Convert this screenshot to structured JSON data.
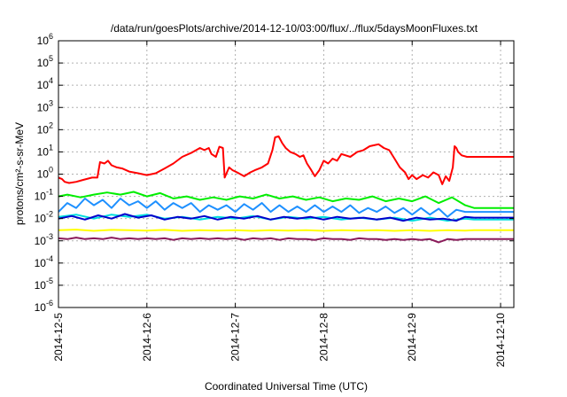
{
  "chart_data": {
    "type": "line",
    "title": "/data/run/goesPlots/archive/2014-12-10/03:00/flux/../flux/5daysMoonFluxes.txt",
    "xlabel": "Coordinated Universal Time (UTC)",
    "ylabel": "protons/cm²-s-sr-MeV",
    "yscale": "log",
    "ylim_exp": [
      -6,
      6
    ],
    "y_tick_exponents": [
      -6,
      -5,
      -4,
      -3,
      -2,
      -1,
      0,
      1,
      2,
      3,
      4,
      5,
      6
    ],
    "y_tick_base": "10",
    "x_ticks": [
      "2014-12-5",
      "2014-12-6",
      "2014-12-7",
      "2014-12-8",
      "2014-12-9",
      "2014-12-10"
    ],
    "xlim_days": [
      0,
      5.15
    ],
    "data_end_day": 4.7,
    "grid": true,
    "legend": "none",
    "series": [
      {
        "color": "#ff0000",
        "points": [
          [
            0,
            0.7
          ],
          [
            0.04,
            0.6
          ],
          [
            0.07,
            0.45
          ],
          [
            0.12,
            0.4
          ],
          [
            0.2,
            0.45
          ],
          [
            0.28,
            0.55
          ],
          [
            0.38,
            0.7
          ],
          [
            0.44,
            0.7
          ],
          [
            0.47,
            3.5
          ],
          [
            0.52,
            3
          ],
          [
            0.56,
            4
          ],
          [
            0.6,
            2.5
          ],
          [
            0.66,
            2
          ],
          [
            0.72,
            1.8
          ],
          [
            0.8,
            1.3
          ],
          [
            0.9,
            1.1
          ],
          [
            1.0,
            0.9
          ],
          [
            1.1,
            1.1
          ],
          [
            1.2,
            1.8
          ],
          [
            1.3,
            3
          ],
          [
            1.4,
            6
          ],
          [
            1.5,
            9
          ],
          [
            1.6,
            15
          ],
          [
            1.65,
            12
          ],
          [
            1.7,
            15
          ],
          [
            1.73,
            8
          ],
          [
            1.78,
            6
          ],
          [
            1.82,
            17
          ],
          [
            1.86,
            15
          ],
          [
            1.88,
            0.7
          ],
          [
            1.93,
            2
          ],
          [
            1.97,
            1.5
          ],
          [
            2.02,
            1.2
          ],
          [
            2.1,
            0.8
          ],
          [
            2.17,
            1.2
          ],
          [
            2.22,
            1.5
          ],
          [
            2.3,
            2
          ],
          [
            2.37,
            3
          ],
          [
            2.42,
            12
          ],
          [
            2.45,
            45
          ],
          [
            2.49,
            50
          ],
          [
            2.53,
            25
          ],
          [
            2.57,
            15
          ],
          [
            2.62,
            10
          ],
          [
            2.68,
            8
          ],
          [
            2.73,
            6
          ],
          [
            2.77,
            7
          ],
          [
            2.81,
            3
          ],
          [
            2.86,
            1.5
          ],
          [
            2.9,
            0.8
          ],
          [
            2.95,
            1.5
          ],
          [
            3.0,
            4
          ],
          [
            3.05,
            3
          ],
          [
            3.1,
            5
          ],
          [
            3.15,
            4
          ],
          [
            3.2,
            8
          ],
          [
            3.3,
            6
          ],
          [
            3.38,
            10
          ],
          [
            3.45,
            12
          ],
          [
            3.52,
            18
          ],
          [
            3.57,
            20
          ],
          [
            3.62,
            22
          ],
          [
            3.68,
            15
          ],
          [
            3.74,
            12
          ],
          [
            3.8,
            5
          ],
          [
            3.86,
            2
          ],
          [
            3.92,
            1.2
          ],
          [
            3.96,
            0.6
          ],
          [
            4.0,
            0.9
          ],
          [
            4.05,
            0.6
          ],
          [
            4.12,
            0.9
          ],
          [
            4.18,
            0.7
          ],
          [
            4.24,
            1.2
          ],
          [
            4.3,
            0.9
          ],
          [
            4.34,
            0.35
          ],
          [
            4.38,
            0.8
          ],
          [
            4.42,
            0.5
          ],
          [
            4.46,
            2
          ],
          [
            4.48,
            18
          ],
          [
            4.5,
            15
          ],
          [
            4.52,
            10
          ],
          [
            4.56,
            7
          ],
          [
            4.62,
            6
          ],
          [
            4.7,
            6
          ],
          [
            5.15,
            6
          ]
        ]
      },
      {
        "color": "#00ee00",
        "points": [
          [
            0,
            0.1
          ],
          [
            0.1,
            0.12
          ],
          [
            0.25,
            0.09
          ],
          [
            0.4,
            0.12
          ],
          [
            0.55,
            0.15
          ],
          [
            0.7,
            0.12
          ],
          [
            0.85,
            0.16
          ],
          [
            1.0,
            0.1
          ],
          [
            1.15,
            0.14
          ],
          [
            1.3,
            0.08
          ],
          [
            1.45,
            0.1
          ],
          [
            1.6,
            0.07
          ],
          [
            1.75,
            0.09
          ],
          [
            1.9,
            0.07
          ],
          [
            2.05,
            0.1
          ],
          [
            2.2,
            0.08
          ],
          [
            2.35,
            0.12
          ],
          [
            2.5,
            0.08
          ],
          [
            2.65,
            0.1
          ],
          [
            2.8,
            0.07
          ],
          [
            2.95,
            0.09
          ],
          [
            3.1,
            0.06
          ],
          [
            3.25,
            0.08
          ],
          [
            3.4,
            0.07
          ],
          [
            3.55,
            0.1
          ],
          [
            3.7,
            0.06
          ],
          [
            3.85,
            0.08
          ],
          [
            4.0,
            0.06
          ],
          [
            4.15,
            0.1
          ],
          [
            4.3,
            0.05
          ],
          [
            4.45,
            0.09
          ],
          [
            4.6,
            0.04
          ],
          [
            4.7,
            0.03
          ],
          [
            5.15,
            0.03
          ]
        ]
      },
      {
        "color": "#00dddd",
        "points": [
          [
            0,
            0.012
          ],
          [
            0.2,
            0.015
          ],
          [
            0.4,
            0.01
          ],
          [
            0.6,
            0.015
          ],
          [
            0.8,
            0.012
          ],
          [
            1.0,
            0.015
          ],
          [
            1.2,
            0.01
          ],
          [
            1.4,
            0.012
          ],
          [
            1.6,
            0.009
          ],
          [
            1.8,
            0.012
          ],
          [
            2.0,
            0.01
          ],
          [
            2.2,
            0.013
          ],
          [
            2.4,
            0.009
          ],
          [
            2.6,
            0.012
          ],
          [
            2.8,
            0.01
          ],
          [
            3.0,
            0.012
          ],
          [
            3.2,
            0.009
          ],
          [
            3.4,
            0.011
          ],
          [
            3.6,
            0.009
          ],
          [
            3.8,
            0.011
          ],
          [
            4.0,
            0.008
          ],
          [
            4.2,
            0.011
          ],
          [
            4.4,
            0.008
          ],
          [
            4.6,
            0.01
          ],
          [
            4.7,
            0.009
          ],
          [
            5.15,
            0.009
          ]
        ]
      },
      {
        "color": "#1e90ff",
        "points": [
          [
            0,
            0.02
          ],
          [
            0.1,
            0.05
          ],
          [
            0.2,
            0.03
          ],
          [
            0.3,
            0.08
          ],
          [
            0.4,
            0.04
          ],
          [
            0.5,
            0.07
          ],
          [
            0.6,
            0.03
          ],
          [
            0.7,
            0.08
          ],
          [
            0.8,
            0.04
          ],
          [
            0.9,
            0.06
          ],
          [
            1.0,
            0.03
          ],
          [
            1.1,
            0.06
          ],
          [
            1.2,
            0.025
          ],
          [
            1.3,
            0.05
          ],
          [
            1.4,
            0.03
          ],
          [
            1.5,
            0.05
          ],
          [
            1.6,
            0.02
          ],
          [
            1.7,
            0.04
          ],
          [
            1.8,
            0.025
          ],
          [
            1.9,
            0.04
          ],
          [
            2.0,
            0.02
          ],
          [
            2.1,
            0.045
          ],
          [
            2.2,
            0.025
          ],
          [
            2.3,
            0.05
          ],
          [
            2.4,
            0.02
          ],
          [
            2.5,
            0.04
          ],
          [
            2.6,
            0.02
          ],
          [
            2.7,
            0.035
          ],
          [
            2.8,
            0.02
          ],
          [
            2.9,
            0.04
          ],
          [
            3.0,
            0.02
          ],
          [
            3.1,
            0.035
          ],
          [
            3.2,
            0.02
          ],
          [
            3.3,
            0.04
          ],
          [
            3.4,
            0.018
          ],
          [
            3.5,
            0.03
          ],
          [
            3.6,
            0.02
          ],
          [
            3.7,
            0.035
          ],
          [
            3.8,
            0.018
          ],
          [
            3.9,
            0.03
          ],
          [
            4.0,
            0.015
          ],
          [
            4.1,
            0.03
          ],
          [
            4.2,
            0.015
          ],
          [
            4.3,
            0.028
          ],
          [
            4.4,
            0.012
          ],
          [
            4.5,
            0.025
          ],
          [
            4.6,
            0.02
          ],
          [
            4.7,
            0.02
          ],
          [
            5.15,
            0.02
          ]
        ]
      },
      {
        "color": "#0000cc",
        "points": [
          [
            0,
            0.01
          ],
          [
            0.15,
            0.013
          ],
          [
            0.3,
            0.009
          ],
          [
            0.45,
            0.014
          ],
          [
            0.6,
            0.01
          ],
          [
            0.75,
            0.016
          ],
          [
            0.9,
            0.011
          ],
          [
            1.05,
            0.014
          ],
          [
            1.2,
            0.009
          ],
          [
            1.35,
            0.012
          ],
          [
            1.5,
            0.01
          ],
          [
            1.65,
            0.013
          ],
          [
            1.8,
            0.009
          ],
          [
            1.95,
            0.012
          ],
          [
            2.1,
            0.01
          ],
          [
            2.25,
            0.013
          ],
          [
            2.4,
            0.009
          ],
          [
            2.55,
            0.012
          ],
          [
            2.7,
            0.01
          ],
          [
            2.85,
            0.012
          ],
          [
            3.0,
            0.009
          ],
          [
            3.15,
            0.012
          ],
          [
            3.3,
            0.01
          ],
          [
            3.45,
            0.011
          ],
          [
            3.6,
            0.009
          ],
          [
            3.75,
            0.011
          ],
          [
            3.9,
            0.008
          ],
          [
            4.05,
            0.011
          ],
          [
            4.2,
            0.009
          ],
          [
            4.35,
            0.01
          ],
          [
            4.5,
            0.008
          ],
          [
            4.6,
            0.012
          ],
          [
            4.7,
            0.011
          ],
          [
            5.15,
            0.011
          ]
        ]
      },
      {
        "color": "#ffff00",
        "points": [
          [
            0,
            0.003
          ],
          [
            0.2,
            0.0032
          ],
          [
            0.4,
            0.0028
          ],
          [
            0.6,
            0.0031
          ],
          [
            0.8,
            0.003
          ],
          [
            1.0,
            0.0029
          ],
          [
            1.2,
            0.0031
          ],
          [
            1.4,
            0.0028
          ],
          [
            1.6,
            0.003
          ],
          [
            1.8,
            0.0029
          ],
          [
            2.0,
            0.003
          ],
          [
            2.2,
            0.0028
          ],
          [
            2.4,
            0.003
          ],
          [
            2.6,
            0.0029
          ],
          [
            2.8,
            0.003
          ],
          [
            3.0,
            0.0028
          ],
          [
            3.2,
            0.003
          ],
          [
            3.4,
            0.0029
          ],
          [
            3.6,
            0.003
          ],
          [
            3.8,
            0.0028
          ],
          [
            4.0,
            0.003
          ],
          [
            4.2,
            0.0028
          ],
          [
            4.4,
            0.003
          ],
          [
            4.6,
            0.0029
          ],
          [
            4.7,
            0.003
          ],
          [
            5.15,
            0.003
          ]
        ]
      },
      {
        "color": "#8b1a5a",
        "points": [
          [
            0,
            0.0013
          ],
          [
            0.1,
            0.0012
          ],
          [
            0.2,
            0.0014
          ],
          [
            0.3,
            0.0012
          ],
          [
            0.4,
            0.0013
          ],
          [
            0.5,
            0.0012
          ],
          [
            0.6,
            0.0014
          ],
          [
            0.7,
            0.0012
          ],
          [
            0.8,
            0.0013
          ],
          [
            0.9,
            0.0012
          ],
          [
            1.0,
            0.0013
          ],
          [
            1.1,
            0.0012
          ],
          [
            1.2,
            0.0013
          ],
          [
            1.3,
            0.0011
          ],
          [
            1.4,
            0.0013
          ],
          [
            1.5,
            0.0012
          ],
          [
            1.6,
            0.0013
          ],
          [
            1.7,
            0.0012
          ],
          [
            1.8,
            0.0013
          ],
          [
            1.9,
            0.0012
          ],
          [
            2.0,
            0.0013
          ],
          [
            2.1,
            0.0011
          ],
          [
            2.2,
            0.0013
          ],
          [
            2.3,
            0.0012
          ],
          [
            2.4,
            0.0013
          ],
          [
            2.5,
            0.0011
          ],
          [
            2.6,
            0.0013
          ],
          [
            2.7,
            0.0012
          ],
          [
            2.8,
            0.0012
          ],
          [
            2.9,
            0.0011
          ],
          [
            3.0,
            0.0013
          ],
          [
            3.1,
            0.0012
          ],
          [
            3.2,
            0.0012
          ],
          [
            3.3,
            0.0011
          ],
          [
            3.4,
            0.0013
          ],
          [
            3.5,
            0.0012
          ],
          [
            3.6,
            0.0012
          ],
          [
            3.7,
            0.0011
          ],
          [
            3.8,
            0.0012
          ],
          [
            3.9,
            0.0011
          ],
          [
            4.0,
            0.0012
          ],
          [
            4.1,
            0.0011
          ],
          [
            4.2,
            0.0012
          ],
          [
            4.3,
            0.00085
          ],
          [
            4.4,
            0.0012
          ],
          [
            4.5,
            0.0011
          ],
          [
            4.6,
            0.0012
          ],
          [
            4.7,
            0.0012
          ],
          [
            5.15,
            0.0012
          ]
        ]
      }
    ]
  }
}
